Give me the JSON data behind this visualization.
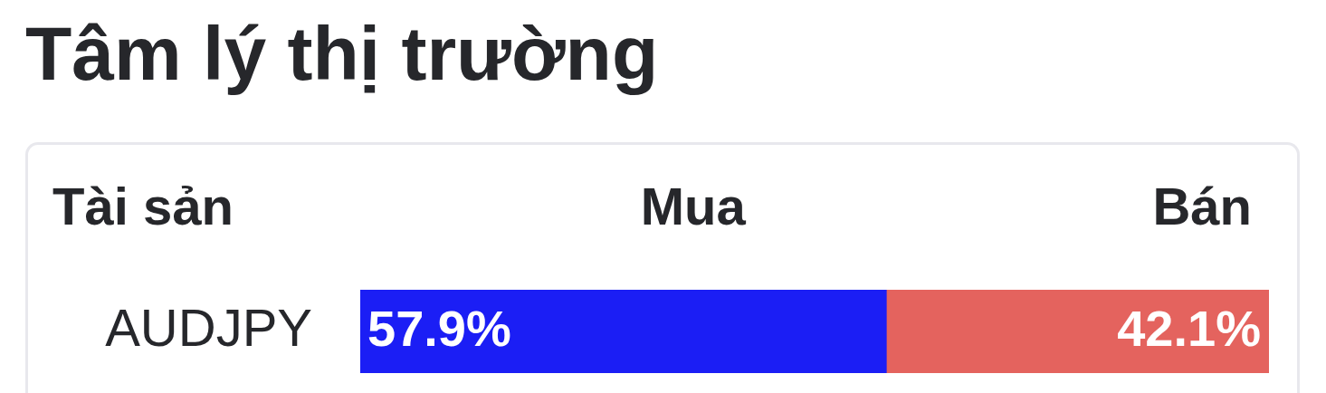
{
  "chart_data": {
    "type": "bar",
    "title": "Tâm lý thị trường",
    "ylabel": "Tài sản",
    "categories": [
      "AUDJPY"
    ],
    "orientation": "horizontal",
    "stacked": true,
    "xlim": [
      0,
      100
    ],
    "tick_labels": "y",
    "series": [
      {
        "name": "Mua",
        "color": "#1b1ef5",
        "values": [
          57.9
        ],
        "value_labels": [
          "57.9%"
        ]
      },
      {
        "name": "Bán",
        "color": "#e4635e",
        "values": [
          42.1
        ],
        "value_labels": [
          "42.1%"
        ]
      }
    ]
  }
}
